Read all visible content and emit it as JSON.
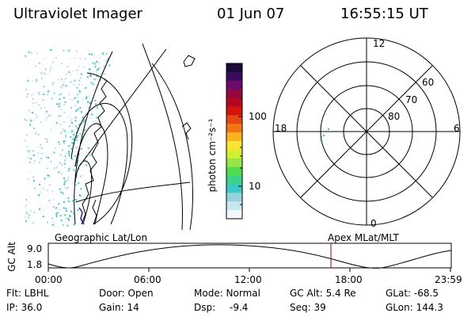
{
  "header": {
    "title": "Ultraviolet Imager",
    "date": "01 Jun 07",
    "time": "16:55:15 UT"
  },
  "colorbar": {
    "label": "photon cm⁻²s⁻¹",
    "ticks": [
      "100",
      "10"
    ],
    "colors": [
      "#1a0a3c",
      "#3c0a5a",
      "#6e0a6e",
      "#96083c",
      "#b4081e",
      "#d2140a",
      "#e64614",
      "#f07814",
      "#fab41e",
      "#fae632",
      "#d2f032",
      "#96e646",
      "#50dc50",
      "#3cd28c",
      "#3cc8c8",
      "#96d2dc",
      "#c8e6ef",
      "#f0f8fc"
    ]
  },
  "polar": {
    "mlt_labels": {
      "top": "12",
      "left": "18",
      "right": "6",
      "bottom": "0"
    },
    "lat_labels": [
      "60",
      "70",
      "80"
    ]
  },
  "geo_label": "Geographic Lat/Lon",
  "apex_label": "Apex MLat/MLT",
  "altplot": {
    "ylabel": "GC Alt",
    "yticks": [
      "9.0",
      "1.8"
    ],
    "xticks": [
      "00:00",
      "06:00",
      "12:00",
      "18:00",
      "23:59"
    ],
    "cursor_color": "#b00000"
  },
  "status": {
    "flt": "Flt: LBHL",
    "door": "Door: Open",
    "mode": "Mode: Normal",
    "gcalt": "GC Alt: 5.4 Re",
    "glat": "GLat: -68.5",
    "ip": "IP: 36.0",
    "gain": "Gain: 14",
    "dsp_label": "Dsp:",
    "dsp_value": "-9.4",
    "seq": "Seq: 39",
    "glon": "GLon: 144.3"
  }
}
